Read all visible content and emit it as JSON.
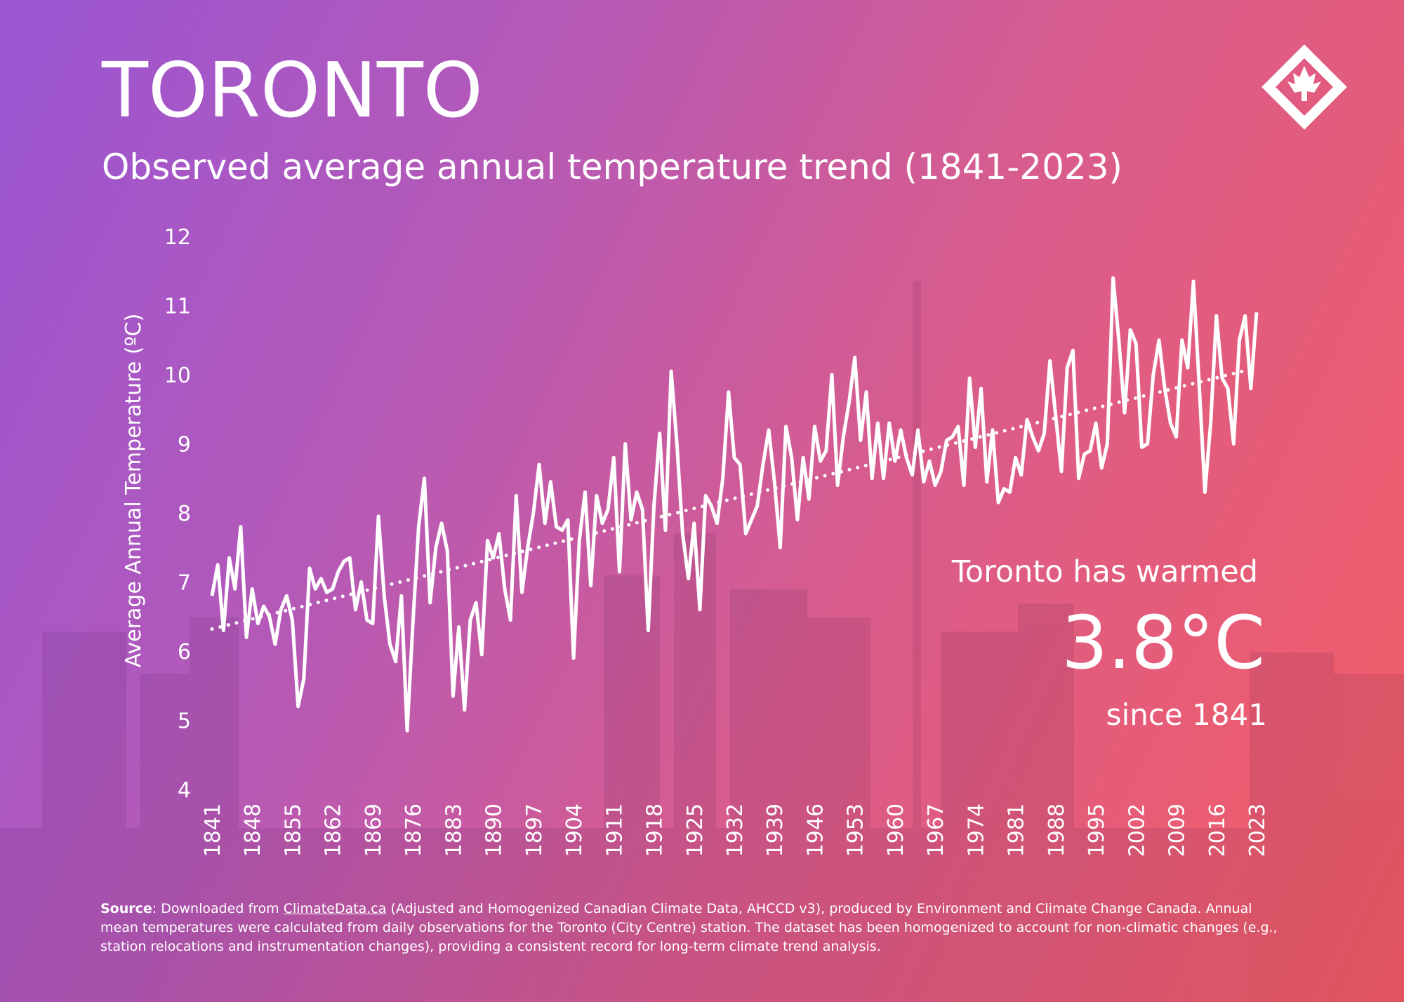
{
  "chart_data": {
    "type": "line",
    "title": "TORONTO",
    "subtitle": "Observed average annual temperature trend (1841-2023)",
    "y_label": "Average Annual Temperature (ºC)",
    "x": [
      1841,
      1842,
      1843,
      1844,
      1845,
      1846,
      1847,
      1848,
      1849,
      1850,
      1851,
      1852,
      1853,
      1854,
      1855,
      1856,
      1857,
      1858,
      1859,
      1860,
      1861,
      1862,
      1863,
      1864,
      1865,
      1866,
      1867,
      1868,
      1869,
      1870,
      1871,
      1872,
      1873,
      1874,
      1875,
      1876,
      1877,
      1878,
      1879,
      1880,
      1881,
      1882,
      1883,
      1884,
      1885,
      1886,
      1887,
      1888,
      1889,
      1890,
      1891,
      1892,
      1893,
      1894,
      1895,
      1896,
      1897,
      1898,
      1899,
      1900,
      1901,
      1902,
      1903,
      1904,
      1905,
      1906,
      1907,
      1908,
      1909,
      1910,
      1911,
      1912,
      1913,
      1914,
      1915,
      1916,
      1917,
      1918,
      1919,
      1920,
      1921,
      1922,
      1923,
      1924,
      1925,
      1926,
      1927,
      1928,
      1929,
      1930,
      1931,
      1932,
      1933,
      1934,
      1935,
      1936,
      1937,
      1938,
      1939,
      1940,
      1941,
      1942,
      1943,
      1944,
      1945,
      1946,
      1947,
      1948,
      1949,
      1950,
      1951,
      1952,
      1953,
      1954,
      1955,
      1956,
      1957,
      1958,
      1959,
      1960,
      1961,
      1962,
      1963,
      1964,
      1965,
      1966,
      1967,
      1968,
      1969,
      1970,
      1971,
      1972,
      1973,
      1974,
      1975,
      1976,
      1977,
      1978,
      1979,
      1980,
      1981,
      1982,
      1983,
      1984,
      1985,
      1986,
      1987,
      1988,
      1989,
      1990,
      1991,
      1992,
      1993,
      1994,
      1995,
      1996,
      1997,
      1998,
      1999,
      2000,
      2001,
      2002,
      2003,
      2004,
      2005,
      2006,
      2007,
      2008,
      2009,
      2010,
      2011,
      2012,
      2013,
      2014,
      2015,
      2016,
      2017,
      2018,
      2019,
      2020,
      2021,
      2022,
      2023
    ],
    "values": [
      6.8,
      7.25,
      6.3,
      7.35,
      6.9,
      7.8,
      6.2,
      6.9,
      6.4,
      6.65,
      6.5,
      6.1,
      6.6,
      6.8,
      6.45,
      5.2,
      5.6,
      7.2,
      6.9,
      7.05,
      6.85,
      6.9,
      7.15,
      7.3,
      7.35,
      6.6,
      7.0,
      6.45,
      6.4,
      7.95,
      6.8,
      6.1,
      5.85,
      6.8,
      4.85,
      6.4,
      7.8,
      8.5,
      6.7,
      7.5,
      7.85,
      7.45,
      5.35,
      6.35,
      5.15,
      6.45,
      6.7,
      5.95,
      7.6,
      7.35,
      7.7,
      6.9,
      6.45,
      8.25,
      6.85,
      7.5,
      8.0,
      8.7,
      7.85,
      8.45,
      7.8,
      7.75,
      7.9,
      5.9,
      7.6,
      8.3,
      6.95,
      8.25,
      7.85,
      8.05,
      8.8,
      7.15,
      9.0,
      7.9,
      8.3,
      8.05,
      6.3,
      8.1,
      9.15,
      7.75,
      10.05,
      9.0,
      7.7,
      7.05,
      7.85,
      6.6,
      8.25,
      8.1,
      7.85,
      8.5,
      9.75,
      8.8,
      8.7,
      7.7,
      7.9,
      8.1,
      8.7,
      9.2,
      8.45,
      7.5,
      9.25,
      8.8,
      7.9,
      8.8,
      8.2,
      9.25,
      8.75,
      8.9,
      10.0,
      8.4,
      9.1,
      9.6,
      10.25,
      9.05,
      9.75,
      8.5,
      9.3,
      8.5,
      9.3,
      8.75,
      9.2,
      8.8,
      8.55,
      9.2,
      8.45,
      8.75,
      8.4,
      8.6,
      9.05,
      9.1,
      9.25,
      8.4,
      9.95,
      8.95,
      9.8,
      8.45,
      9.2,
      8.15,
      8.35,
      8.3,
      8.8,
      8.55,
      9.35,
      9.1,
      8.9,
      9.15,
      10.2,
      9.4,
      8.6,
      10.1,
      10.35,
      8.5,
      8.85,
      8.9,
      9.3,
      8.65,
      9.0,
      11.4,
      10.5,
      9.45,
      10.65,
      10.45,
      8.95,
      9.0,
      10.0,
      10.5,
      9.8,
      9.3,
      9.1,
      10.5,
      10.1,
      11.35,
      9.85,
      8.3,
      9.3,
      10.85,
      9.95,
      9.8,
      9.0,
      10.5,
      10.85,
      9.8,
      10.9
    ],
    "color": "#ffffff",
    "trend": {
      "x": [
        1841,
        2023
      ],
      "values": [
        6.32,
        10.1
      ]
    },
    "xlim": [
      1841,
      2023
    ],
    "xticks": [
      1841,
      1848,
      1855,
      1862,
      1869,
      1876,
      1883,
      1890,
      1897,
      1904,
      1911,
      1918,
      1925,
      1932,
      1939,
      1946,
      1953,
      1960,
      1967,
      1974,
      1981,
      1988,
      1995,
      2002,
      2009,
      2016,
      2023
    ],
    "ylim": [
      4,
      12
    ],
    "yticks": [
      4,
      5,
      6,
      7,
      8,
      9,
      10,
      11,
      12
    ],
    "grid": false,
    "annotation": {
      "line1": "Toronto has warmed",
      "value": "3.8°C",
      "line3": "since 1841"
    }
  },
  "footer": {
    "label": "Source",
    "before": ": Downloaded from ",
    "link": "ClimateData.ca",
    "after": " (Adjusted and Homogenized Canadian Climate Data, AHCCD v3), produced by Environment and Climate Change Canada. Annual mean temperatures were calculated from daily observations for the Toronto (City Centre) station. The dataset has been homogenized to account for non-climatic changes (e.g., station relocations and instrumentation changes), providing a consistent record for long-term climate trend analysis."
  }
}
